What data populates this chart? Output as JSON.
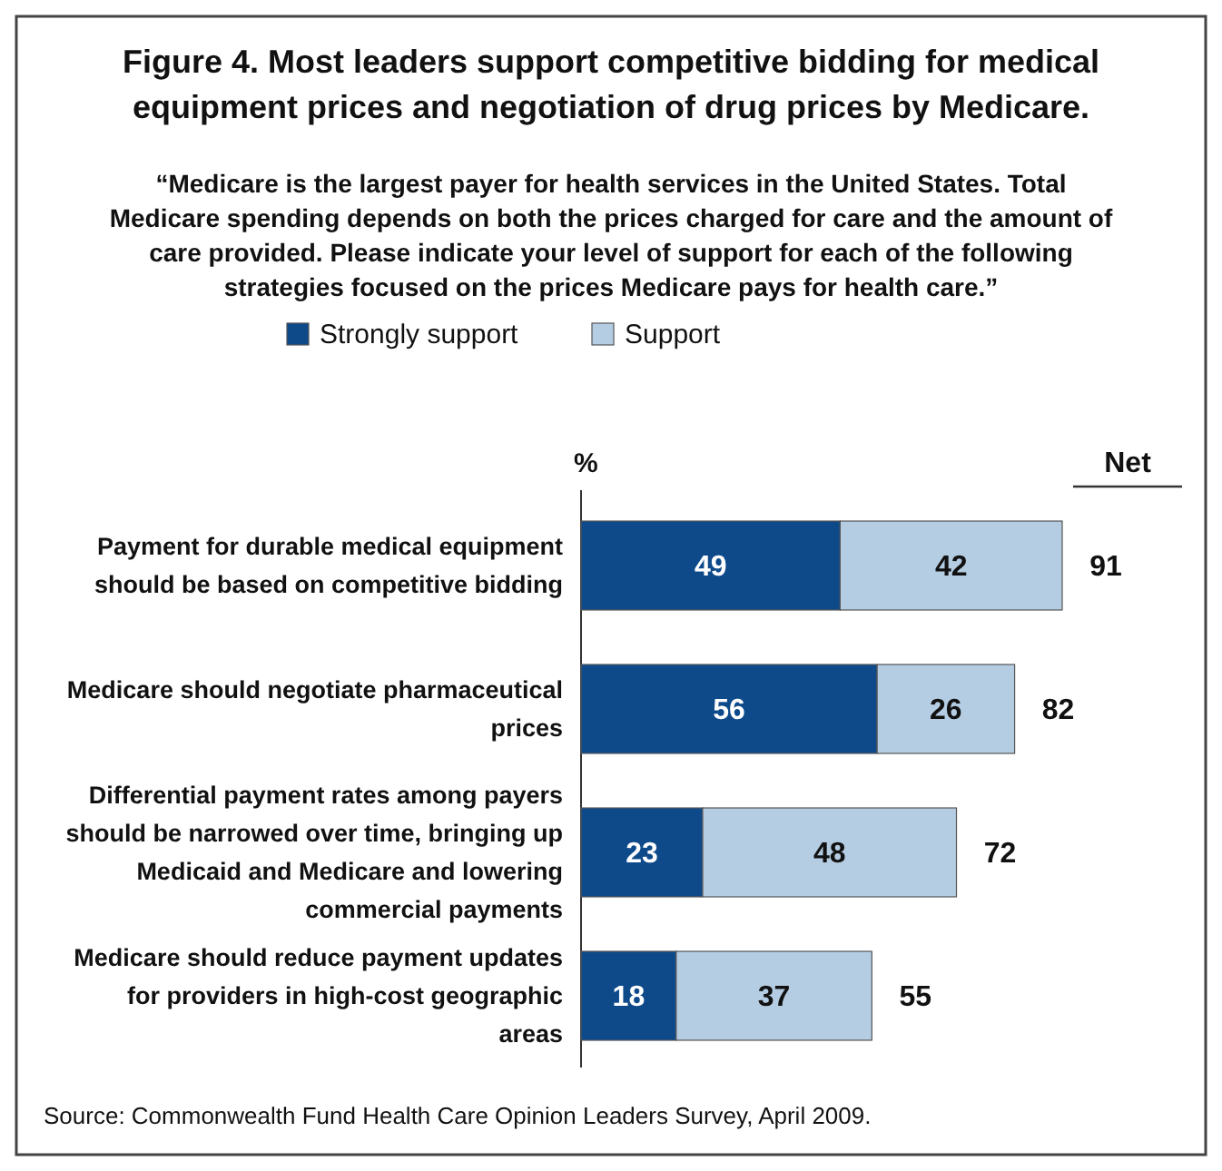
{
  "chart_data": {
    "type": "bar",
    "orientation": "horizontal",
    "stacked": true,
    "title": "Figure 4. Most leaders support competitive bidding for medical equipment prices and negotiation of drug prices by Medicare.",
    "subtitle": "“Medicare is the largest payer for health services in the United States. Total Medicare spending depends on both the prices charged for care and the amount of care provided. Please indicate your level of support for each of the following strategies focused on the prices Medicare pays for health care.”",
    "xlabel": "%",
    "categories": [
      "Payment for durable medical equipment should be based on competitive bidding",
      "Medicare should negotiate pharmaceutical prices",
      "Differential payment rates among payers should be narrowed over time, bringing up Medicaid and Medicare and lowering commercial payments",
      "Medicare should reduce payment updates for providers in high-cost geographic areas"
    ],
    "series": [
      {
        "name": "Strongly support",
        "color": "#0e4a8a",
        "values": [
          49,
          56,
          23,
          18
        ]
      },
      {
        "name": "Support",
        "color": "#b5cde3",
        "values": [
          42,
          26,
          48,
          37
        ]
      }
    ],
    "data_labels": true,
    "totals": [
      "91",
      "82",
      "72",
      "55"
    ],
    "legend": "top",
    "annotations": [
      "Net",
      "Source: Commonwealth Fund Health Care Opinion Leaders Survey, April 2009."
    ]
  }
}
